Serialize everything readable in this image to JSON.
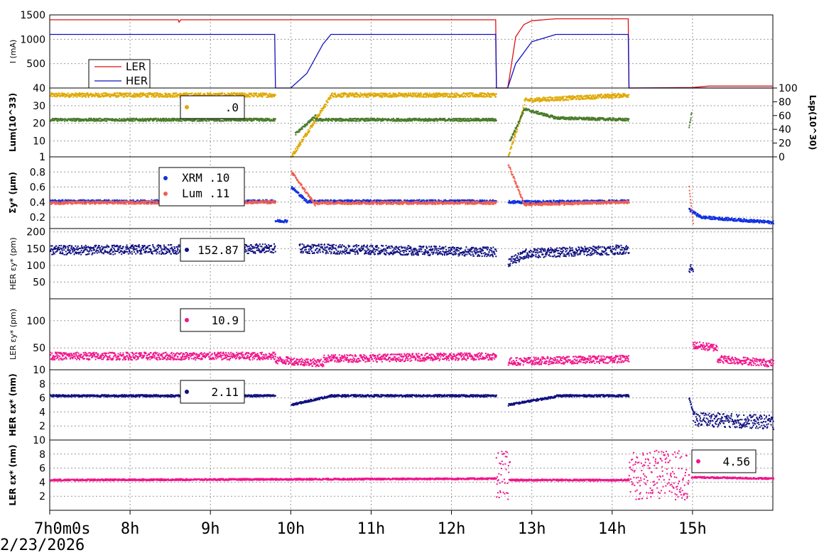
{
  "date": "2/23/2026",
  "chart_data": {
    "type": "scatter",
    "x_ticks": [
      "7h0m0s",
      "8h",
      "9h",
      "10h",
      "11h",
      "12h",
      "13h",
      "14h",
      "15h"
    ],
    "xlim": [
      7.0,
      16.0
    ],
    "colors": {
      "LER": "#e01010",
      "HER": "#1010c0",
      "lum_gold": "#e0a800",
      "lum_green": "#4a7a2a",
      "xrm": "#1030e0",
      "lum_salmon": "#f06050",
      "navy": "#101080",
      "pink": "#f0168c"
    },
    "panels": [
      {
        "id": "current",
        "ylabel": "I (mA)",
        "ylim": [
          0,
          1500
        ],
        "yticks": [
          "1500",
          "1000",
          "500"
        ],
        "legend": [
          "LER",
          "HER"
        ],
        "series": [
          {
            "name": "LER",
            "kind": "line",
            "color": "#e01010",
            "points": [
              [
                7.0,
                1400
              ],
              [
                8.6,
                1400
              ],
              [
                8.61,
                1350
              ],
              [
                8.63,
                1400
              ],
              [
                12.55,
                1400
              ],
              [
                12.56,
                0
              ],
              [
                12.7,
                0
              ],
              [
                12.72,
                200
              ],
              [
                12.8,
                1050
              ],
              [
                12.9,
                1300
              ],
              [
                13.0,
                1380
              ],
              [
                13.3,
                1420
              ],
              [
                14.2,
                1420
              ],
              [
                14.21,
                0
              ],
              [
                15.0,
                10
              ],
              [
                15.2,
                40
              ],
              [
                16.0,
                40
              ]
            ]
          },
          {
            "name": "HER",
            "kind": "line",
            "color": "#1010c0",
            "points": [
              [
                7.0,
                1100
              ],
              [
                9.8,
                1100
              ],
              [
                9.81,
                0
              ],
              [
                10.0,
                0
              ],
              [
                10.2,
                300
              ],
              [
                10.4,
                900
              ],
              [
                10.5,
                1100
              ],
              [
                12.55,
                1100
              ],
              [
                12.56,
                0
              ],
              [
                12.7,
                0
              ],
              [
                12.8,
                500
              ],
              [
                13.0,
                950
              ],
              [
                13.3,
                1100
              ],
              [
                14.2,
                1100
              ],
              [
                14.21,
                0
              ],
              [
                16.0,
                0
              ]
            ]
          }
        ]
      },
      {
        "id": "luminosity",
        "ylabel": "Lum(10^33)",
        "ylim": [
          1,
          40
        ],
        "yticks": [
          "40",
          "30",
          "20",
          "10",
          "1"
        ],
        "ylabel_right": "Lsp(10^30)",
        "yticks_right": [
          "100",
          "80",
          "60",
          "40",
          "20",
          "0"
        ],
        "legend_value": ".0",
        "series": [
          {
            "kind": "points",
            "color": "#e0a800",
            "noise": 1.2,
            "segments": [
              [
                7.0,
                9.8,
                36,
                36
              ],
              [
                10.0,
                10.5,
                1,
                36
              ],
              [
                10.5,
                12.55,
                36,
                36
              ],
              [
                12.7,
                12.9,
                1,
                30
              ],
              [
                12.9,
                14.2,
                33,
                36
              ]
            ]
          },
          {
            "kind": "points",
            "color": "#4a7a2a",
            "noise": 0.8,
            "segments": [
              [
                7.0,
                9.8,
                22,
                22
              ],
              [
                10.05,
                10.3,
                14,
                24
              ],
              [
                10.3,
                12.55,
                22,
                22
              ],
              [
                12.72,
                12.9,
                10,
                28
              ],
              [
                12.9,
                13.3,
                28,
                23
              ],
              [
                13.3,
                14.2,
                23,
                22
              ],
              [
                14.95,
                14.98,
                18,
                26
              ]
            ]
          }
        ]
      },
      {
        "id": "sigma",
        "ylabel": "Σy* (μm)",
        "ylim": [
          0.05,
          1.0
        ],
        "yticks": [
          "1",
          "0.8",
          "0.6",
          "0.4",
          "0.2"
        ],
        "legend": [
          "XRM .10",
          "Lum .11"
        ],
        "series": [
          {
            "kind": "points",
            "color": "#1030e0",
            "noise": 0.02,
            "segments": [
              [
                7.0,
                9.8,
                0.41,
                0.41
              ],
              [
                9.8,
                9.95,
                0.15,
                0.15
              ],
              [
                10.0,
                10.2,
                0.6,
                0.4
              ],
              [
                10.2,
                12.55,
                0.41,
                0.41
              ],
              [
                12.7,
                14.2,
                0.4,
                0.41
              ],
              [
                14.95,
                15.1,
                0.3,
                0.2
              ],
              [
                15.1,
                16.0,
                0.2,
                0.13
              ]
            ]
          },
          {
            "kind": "points",
            "color": "#f06050",
            "noise": 0.02,
            "segments": [
              [
                7.0,
                9.8,
                0.39,
                0.4
              ],
              [
                10.0,
                10.3,
                0.8,
                0.36
              ],
              [
                10.3,
                12.55,
                0.39,
                0.39
              ],
              [
                12.7,
                12.9,
                0.9,
                0.36
              ],
              [
                12.9,
                14.2,
                0.37,
                0.4
              ],
              [
                14.95,
                15.0,
                0.6,
                0.1
              ]
            ]
          }
        ]
      },
      {
        "id": "her_emity",
        "ylabel": "HER εy* (pm)",
        "ylim": [
          0,
          210
        ],
        "yticks": [
          "200",
          "150",
          "100",
          "50"
        ],
        "legend_value": "152.87",
        "series": [
          {
            "kind": "points",
            "color": "#101080",
            "noise": 14,
            "segments": [
              [
                7.0,
                9.8,
                145,
                150
              ],
              [
                10.1,
                12.55,
                150,
                140
              ],
              [
                12.7,
                12.9,
                110,
                130
              ],
              [
                12.9,
                14.2,
                135,
                148
              ],
              [
                14.95,
                15.0,
                90,
                90
              ]
            ]
          }
        ]
      },
      {
        "id": "ler_emity",
        "ylabel": "LER εy* (pm)",
        "ylim": [
          10,
          140
        ],
        "yticks": [
          "100",
          "50",
          "10"
        ],
        "legend_value": "10.9",
        "series": [
          {
            "kind": "points",
            "color": "#f0168c",
            "noise": 7,
            "segments": [
              [
                7.0,
                9.8,
                35,
                35
              ],
              [
                9.8,
                10.4,
                28,
                22
              ],
              [
                10.4,
                12.55,
                30,
                35
              ],
              [
                12.7,
                14.2,
                25,
                30
              ],
              [
                15.0,
                15.3,
                55,
                50
              ],
              [
                15.3,
                16.0,
                30,
                22
              ]
            ]
          }
        ]
      },
      {
        "id": "her_emitx",
        "ylabel": "HER εx* (nm)",
        "ylim": [
          0,
          10
        ],
        "yticks": [
          "8",
          "6",
          "4",
          "2"
        ],
        "legend_value": "2.11",
        "series": [
          {
            "kind": "points",
            "color": "#101080",
            "noise": 0.15,
            "segments": [
              [
                7.0,
                9.8,
                6.3,
                6.3
              ],
              [
                10.0,
                10.5,
                5.0,
                6.3
              ],
              [
                10.5,
                12.55,
                6.3,
                6.3
              ],
              [
                12.7,
                13.3,
                5.0,
                6.2
              ],
              [
                13.3,
                14.2,
                6.3,
                6.3
              ],
              [
                14.95,
                15.0,
                6,
                4
              ]
            ]
          },
          {
            "kind": "points",
            "color": "#101080",
            "noise": 1.0,
            "segments": [
              [
                15.0,
                16.0,
                3.0,
                2.5
              ]
            ]
          }
        ]
      },
      {
        "id": "ler_emitx",
        "ylabel": "LER εx* (nm)",
        "ylim": [
          0,
          10
        ],
        "yticks": [
          "10",
          "8",
          "6",
          "4",
          "2"
        ],
        "legend_value": "4.56",
        "series": [
          {
            "kind": "points",
            "color": "#f0168c",
            "noise": 0.12,
            "segments": [
              [
                7.0,
                12.55,
                4.3,
                4.5
              ],
              [
                12.72,
                14.2,
                4.3,
                4.3
              ],
              [
                14.98,
                16.0,
                4.7,
                4.5
              ]
            ]
          },
          {
            "kind": "points",
            "color": "#f0168c",
            "noise": 3.5,
            "segments": [
              [
                12.55,
                12.72,
                5,
                5
              ],
              [
                14.2,
                14.95,
                5,
                5
              ]
            ]
          }
        ]
      }
    ]
  }
}
